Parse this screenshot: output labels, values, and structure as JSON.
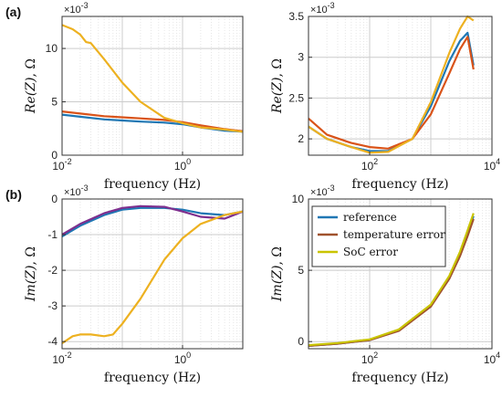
{
  "panel_labels": [
    "(a)",
    "(b)"
  ],
  "legend": {
    "entries": [
      {
        "label": "reference",
        "color": "#1f77b4"
      },
      {
        "label": "temperature error",
        "color": "#a0522d"
      },
      {
        "label": "SoC error",
        "color": "#c9c400"
      }
    ]
  },
  "chart_data": [
    {
      "id": "re-low",
      "type": "line",
      "xlabel": "frequency (Hz)",
      "ylabel": "Re(Z), Ω",
      "xscale": "log",
      "xlim": [
        0.01,
        10
      ],
      "ylim": [
        0,
        13
      ],
      "multiplier": "×10^-3",
      "xticks": [
        {
          "value": 0.01,
          "base": "10",
          "exp": "-2"
        },
        {
          "value": 1,
          "base": "10",
          "exp": "0"
        }
      ],
      "yticks": [
        0,
        5,
        10
      ],
      "grid": true,
      "series": [
        {
          "name": "reference",
          "color": "#1f77b4",
          "x": [
            0.01,
            0.02,
            0.05,
            0.1,
            0.2,
            0.5,
            1,
            2,
            5,
            10
          ],
          "y": [
            3.8,
            3.6,
            3.35,
            3.25,
            3.15,
            3.05,
            2.9,
            2.6,
            2.3,
            2.2
          ]
        },
        {
          "name": "temperature error",
          "color": "#d95319",
          "x": [
            0.01,
            0.02,
            0.05,
            0.1,
            0.2,
            0.5,
            1,
            2,
            5,
            10
          ],
          "y": [
            4.1,
            3.9,
            3.65,
            3.55,
            3.45,
            3.3,
            3.1,
            2.8,
            2.45,
            2.25
          ]
        },
        {
          "name": "SoC error",
          "color": "#edb120",
          "x": [
            0.01,
            0.015,
            0.02,
            0.025,
            0.03,
            0.05,
            0.1,
            0.2,
            0.5,
            1,
            2,
            5,
            10
          ],
          "y": [
            12.2,
            11.8,
            11.3,
            10.6,
            10.5,
            9.0,
            6.8,
            5.0,
            3.5,
            3.0,
            2.6,
            2.4,
            2.2
          ]
        }
      ]
    },
    {
      "id": "re-high",
      "type": "line",
      "xlabel": "frequency (Hz)",
      "ylabel": "Re(Z), Ω",
      "xscale": "log",
      "xlim": [
        10,
        10000
      ],
      "ylim": [
        1.8,
        3.5
      ],
      "multiplier": "×10^-3",
      "xticks": [
        {
          "value": 100,
          "base": "10",
          "exp": "2"
        },
        {
          "value": 10000,
          "base": "10",
          "exp": "4"
        }
      ],
      "yticks": [
        2,
        2.5,
        3,
        3.5
      ],
      "grid": true,
      "series": [
        {
          "name": "reference",
          "color": "#1f77b4",
          "x": [
            10,
            20,
            50,
            100,
            200,
            500,
            1000,
            2000,
            3000,
            4000,
            5000
          ],
          "y": [
            2.15,
            2.0,
            1.9,
            1.85,
            1.85,
            2.0,
            2.4,
            2.95,
            3.2,
            3.3,
            2.9
          ]
        },
        {
          "name": "temperature error",
          "color": "#d95319",
          "x": [
            10,
            20,
            50,
            100,
            200,
            500,
            1000,
            2000,
            3000,
            4000,
            5000
          ],
          "y": [
            2.25,
            2.05,
            1.95,
            1.9,
            1.88,
            2.0,
            2.3,
            2.8,
            3.1,
            3.25,
            2.85
          ]
        },
        {
          "name": "SoC error",
          "color": "#edb120",
          "x": [
            10,
            20,
            50,
            100,
            200,
            500,
            1000,
            2000,
            3000,
            4000,
            5000
          ],
          "y": [
            2.15,
            2.0,
            1.9,
            1.83,
            1.84,
            2.0,
            2.45,
            3.05,
            3.35,
            3.5,
            3.45
          ]
        }
      ]
    },
    {
      "id": "im-low",
      "type": "line",
      "xlabel": "frequency (Hz)",
      "ylabel": "Im(Z), Ω",
      "xscale": "log",
      "xlim": [
        0.01,
        10
      ],
      "ylim": [
        -4.2,
        0
      ],
      "multiplier": "×10^-3",
      "xticks": [
        {
          "value": 0.01,
          "base": "10",
          "exp": "-2"
        },
        {
          "value": 1,
          "base": "10",
          "exp": "0"
        }
      ],
      "yticks": [
        -4,
        -3,
        -2,
        -1,
        0
      ],
      "grid": true,
      "series": [
        {
          "name": "reference",
          "color": "#1f77b4",
          "x": [
            0.01,
            0.02,
            0.05,
            0.1,
            0.2,
            0.5,
            1,
            2,
            5,
            10
          ],
          "y": [
            -1.05,
            -0.75,
            -0.45,
            -0.3,
            -0.25,
            -0.25,
            -0.3,
            -0.4,
            -0.45,
            -0.35
          ]
        },
        {
          "name": "temperature error",
          "color": "#7e2f8e",
          "x": [
            0.01,
            0.02,
            0.05,
            0.1,
            0.2,
            0.5,
            1,
            2,
            5,
            10
          ],
          "y": [
            -1.0,
            -0.7,
            -0.4,
            -0.25,
            -0.2,
            -0.22,
            -0.35,
            -0.5,
            -0.55,
            -0.35
          ]
        },
        {
          "name": "SoC error",
          "color": "#edb120",
          "x": [
            0.01,
            0.015,
            0.02,
            0.03,
            0.05,
            0.07,
            0.1,
            0.2,
            0.5,
            1,
            2,
            5,
            10
          ],
          "y": [
            -4.05,
            -3.85,
            -3.8,
            -3.8,
            -3.85,
            -3.8,
            -3.5,
            -2.8,
            -1.7,
            -1.1,
            -0.7,
            -0.45,
            -0.35
          ]
        }
      ]
    },
    {
      "id": "im-high",
      "type": "line",
      "xlabel": "frequency (Hz)",
      "ylabel": "Im(Z), Ω",
      "xscale": "log",
      "xlim": [
        10,
        10000
      ],
      "ylim": [
        -0.5,
        10
      ],
      "multiplier": "×10^-3",
      "xticks": [
        {
          "value": 100,
          "base": "10",
          "exp": "2"
        },
        {
          "value": 10000,
          "base": "10",
          "exp": "4"
        }
      ],
      "yticks": [
        0,
        5,
        10
      ],
      "grid": true,
      "series": [
        {
          "name": "reference",
          "color": "#1f77b4",
          "x": [
            10,
            30,
            100,
            300,
            1000,
            2000,
            3000,
            4000,
            5000
          ],
          "y": [
            -0.3,
            -0.15,
            0.1,
            0.8,
            2.5,
            4.5,
            6.2,
            7.6,
            8.8
          ]
        },
        {
          "name": "temperature error",
          "color": "#a0522d",
          "x": [
            10,
            30,
            100,
            300,
            1000,
            2000,
            3000,
            4000,
            5000
          ],
          "y": [
            -0.3,
            -0.15,
            0.1,
            0.75,
            2.45,
            4.4,
            6.0,
            7.4,
            8.6
          ]
        },
        {
          "name": "SoC error",
          "color": "#c9c400",
          "x": [
            10,
            30,
            100,
            300,
            1000,
            2000,
            3000,
            4000,
            5000
          ],
          "y": [
            -0.25,
            -0.1,
            0.15,
            0.85,
            2.6,
            4.6,
            6.3,
            7.8,
            9.0
          ]
        }
      ]
    }
  ]
}
